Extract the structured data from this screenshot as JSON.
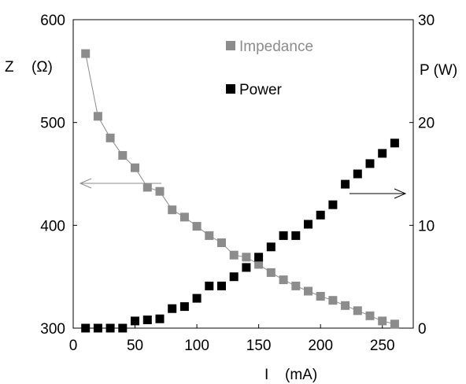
{
  "chart_data": {
    "type": "scatter",
    "x": [
      10,
      20,
      30,
      40,
      50,
      60,
      70,
      80,
      90,
      100,
      110,
      120,
      130,
      140,
      150,
      160,
      170,
      180,
      190,
      200,
      210,
      220,
      230,
      240,
      250,
      260
    ],
    "x_tick_labels": [
      "0",
      "50",
      "100",
      "150",
      "200",
      "250"
    ],
    "x_ticks": [
      0,
      50,
      100,
      150,
      200,
      250
    ],
    "xlim": [
      0,
      275
    ],
    "xlabel_symbol": "I",
    "xlabel_unit": "(mA)",
    "y_left": {
      "label_symbol": "Z",
      "label_unit": "(Ω)",
      "lim": [
        300,
        600
      ],
      "ticks": [
        300,
        400,
        500,
        600
      ],
      "tick_labels": [
        "300",
        "400",
        "500",
        "600"
      ]
    },
    "y_right": {
      "label": "P (W)",
      "lim": [
        0,
        30
      ],
      "ticks": [
        0,
        10,
        20,
        30
      ],
      "tick_labels": [
        "0",
        "10",
        "20",
        "30"
      ]
    },
    "series": [
      {
        "name": "Impedance",
        "axis": "left",
        "color": "#8c8c8c",
        "connected": true,
        "values": [
          567,
          506,
          485,
          468,
          456,
          437,
          433,
          415,
          408,
          399,
          390,
          383,
          371,
          369,
          362,
          354,
          347,
          341,
          336,
          331,
          327,
          322,
          317,
          312,
          307,
          304
        ]
      },
      {
        "name": "Power",
        "axis": "right",
        "color": "#000000",
        "connected": false,
        "values": [
          0,
          0,
          0,
          0,
          0.7,
          0.8,
          0.9,
          1.9,
          2.1,
          2.9,
          4.1,
          4.1,
          5.0,
          5.9,
          6.9,
          7.9,
          9.0,
          9.0,
          10.1,
          11.0,
          12.0,
          14.0,
          15.0,
          16.0,
          17.0,
          18.0
        ]
      }
    ],
    "legend": {
      "placement": "top-center",
      "entries": [
        "Impedance",
        "Power"
      ]
    },
    "annotations": [
      {
        "type": "arrow",
        "direction": "left",
        "target_axis": "left",
        "color": "#8c8c8c"
      },
      {
        "type": "arrow",
        "direction": "right",
        "target_axis": "right",
        "color": "#000000"
      }
    ],
    "grid": false
  }
}
